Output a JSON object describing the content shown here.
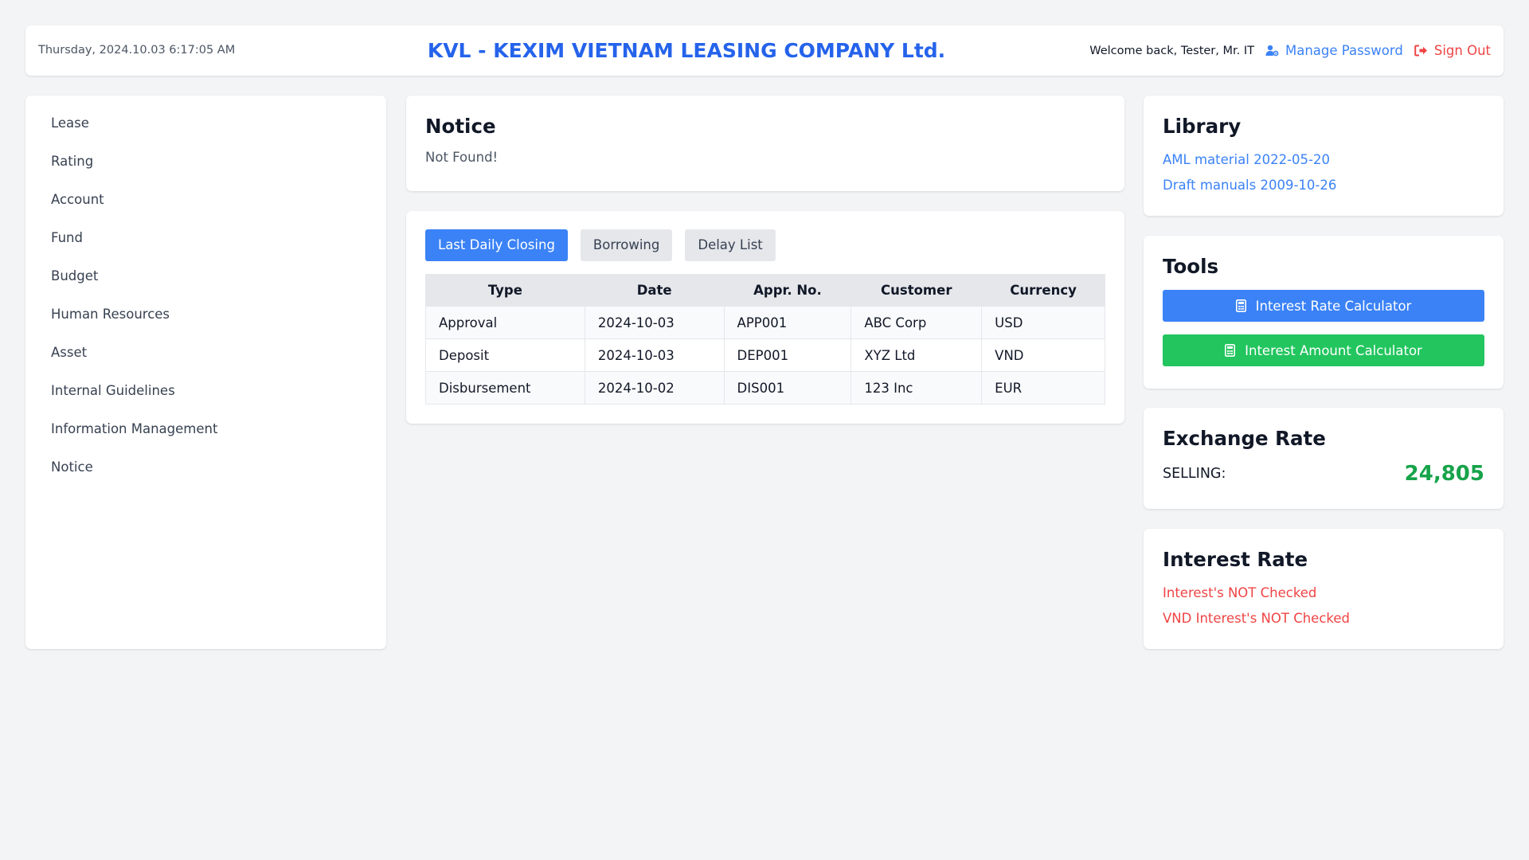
{
  "header": {
    "datetime": "Thursday, 2024.10.03 6:17:05 AM",
    "title": "KVL - KEXIM VIETNAM LEASING COMPANY Ltd.",
    "welcome": "Welcome back, Tester, Mr. IT",
    "manage_password": "Manage Password",
    "sign_out": "Sign Out",
    "manage_icon": "user-gear-icon",
    "signout_icon": "sign-out-icon"
  },
  "sidebar": {
    "items": [
      {
        "label": "Lease"
      },
      {
        "label": "Rating"
      },
      {
        "label": "Account"
      },
      {
        "label": "Fund"
      },
      {
        "label": "Budget"
      },
      {
        "label": "Human Resources"
      },
      {
        "label": "Asset"
      },
      {
        "label": "Internal Guidelines"
      },
      {
        "label": "Information Management"
      },
      {
        "label": "Notice"
      }
    ]
  },
  "notice": {
    "title": "Notice",
    "message": "Not Found!"
  },
  "tabs": {
    "items": [
      {
        "label": "Last Daily Closing",
        "active": true
      },
      {
        "label": "Borrowing",
        "active": false
      },
      {
        "label": "Delay List",
        "active": false
      }
    ]
  },
  "table": {
    "headers": [
      "Type",
      "Date",
      "Appr. No.",
      "Customer",
      "Currency"
    ],
    "rows": [
      [
        "Approval",
        "2024-10-03",
        "APP001",
        "ABC Corp",
        "USD"
      ],
      [
        "Deposit",
        "2024-10-03",
        "DEP001",
        "XYZ Ltd",
        "VND"
      ],
      [
        "Disbursement",
        "2024-10-02",
        "DIS001",
        "123 Inc",
        "EUR"
      ]
    ]
  },
  "library": {
    "title": "Library",
    "links": [
      {
        "label": "AML material 2022-05-20"
      },
      {
        "label": "Draft manuals 2009-10-26"
      }
    ]
  },
  "tools": {
    "title": "Tools",
    "interest_rate_calculator": "Interest Rate Calculator",
    "interest_amount_calculator": "Interest Amount Calculator",
    "icon": "calculator-icon"
  },
  "exchange": {
    "title": "Exchange Rate",
    "label": "SELLING:",
    "value": "24,805"
  },
  "interest": {
    "title": "Interest Rate",
    "items": [
      {
        "label": "Interest's NOT Checked"
      },
      {
        "label": "VND Interest's NOT Checked"
      }
    ]
  },
  "colors": {
    "primary": "#3b82f6",
    "title_blue": "#2563eb",
    "danger": "#ef4444",
    "success": "#22c55e",
    "value_green": "#16a34a",
    "background": "#f3f4f6"
  }
}
